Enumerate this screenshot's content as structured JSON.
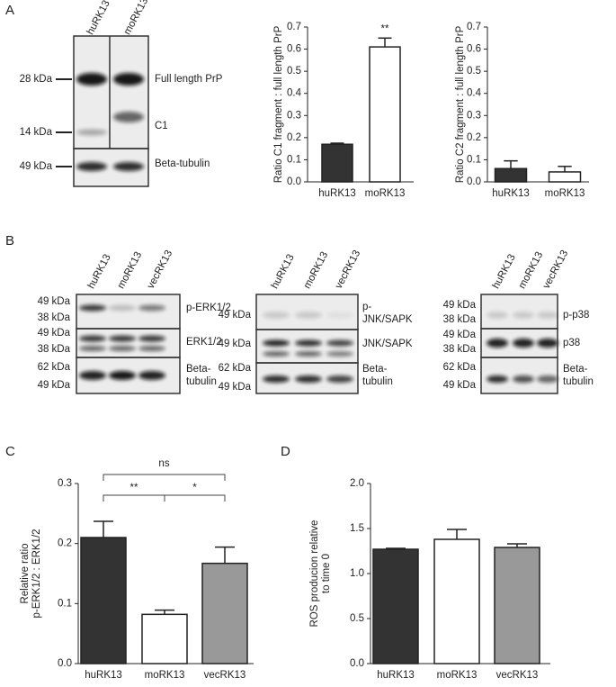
{
  "panels": [
    "A",
    "B",
    "C",
    "D"
  ],
  "blots": [
    {
      "lanes": [
        "huRK13",
        "moRK13"
      ],
      "markers": [
        "28 kDa",
        "14 kDa",
        "49 kDa"
      ],
      "bands": [
        [
          "Full length PrP"
        ],
        [
          "C1"
        ],
        [
          "Beta-tubulin"
        ]
      ]
    },
    {
      "lanes": [
        "huRK13",
        "moRK13",
        "vecRK13"
      ],
      "markers": [
        "49 kDa",
        "38 kDa",
        "49 kDa",
        "38 kDa",
        "62 kDa",
        "49 kDa"
      ],
      "bands": [
        [
          "p-ERK1/2"
        ],
        [
          "ERK1/2"
        ],
        [
          "Beta-",
          "tubulin"
        ]
      ]
    },
    {
      "lanes": [
        "huRK13",
        "moRK13",
        "vecRK13"
      ],
      "markers": [
        "49 kDa",
        "49 kDa",
        "62 kDa",
        "49 kDa"
      ],
      "bands": [
        [
          "p-",
          "JNK/SAPK"
        ],
        [
          "JNK/SAPK"
        ],
        [
          "Beta-",
          "tubulin"
        ]
      ]
    },
    {
      "lanes": [
        "huRK13",
        "moRK13",
        "vecRK13"
      ],
      "markers": [
        "49 kDa",
        "38 kDa",
        "49 kDa",
        "38 kDa",
        "62 kDa",
        "49 kDa"
      ],
      "bands": [
        [
          "p-p38"
        ],
        [
          "p38"
        ],
        [
          "Beta-",
          "tubulin"
        ]
      ]
    }
  ],
  "chart_data": [
    {
      "type": "bar",
      "ylabel": [
        "Ratio C1 fragment : full length PrP"
      ],
      "categories": [
        "huRK13",
        "moRK13"
      ],
      "values": [
        0.17,
        0.61
      ],
      "errors": [
        0.005,
        0.04
      ],
      "colors": [
        "#333333",
        "#ffffff"
      ],
      "ylim": [
        0,
        0.7
      ],
      "yticks": [
        {
          "value": 0,
          "label": "0.0"
        },
        0.1,
        0.2,
        0.3,
        0.4,
        0.5,
        0.6,
        0.7
      ],
      "annotations": [
        "**"
      ]
    },
    {
      "type": "bar",
      "ylabel": [
        "Ratio C2 fragment : full length PrP"
      ],
      "categories": [
        "huRK13",
        "moRK13"
      ],
      "values": [
        0.06,
        0.045
      ],
      "errors": [
        0.035,
        0.025
      ],
      "colors": [
        "#333333",
        "#ffffff"
      ],
      "ylim": [
        0,
        0.7
      ],
      "yticks": [
        {
          "value": 0,
          "label": "0.0"
        },
        0.1,
        0.2,
        0.3,
        0.4,
        0.5,
        0.6,
        0.7
      ]
    },
    {
      "type": "bar",
      "ylabel": [
        "Relative ratio",
        "p-ERK1/2 : ERK1/2"
      ],
      "categories": [
        "huRK13",
        "moRK13",
        "vecRK13"
      ],
      "values": [
        0.21,
        0.082,
        0.167
      ],
      "errors": [
        0.027,
        0.007,
        0.027
      ],
      "colors": [
        "#333333",
        "#ffffff",
        "#999999"
      ],
      "ylim": [
        0,
        0.3
      ],
      "yticks": [
        {
          "value": 0,
          "label": "0.0"
        },
        0.1,
        0.2,
        0.3
      ],
      "annotations": [
        "ns",
        "**",
        "*"
      ]
    },
    {
      "type": "bar",
      "ylabel": [
        "ROS producion relative",
        "to time 0"
      ],
      "categories": [
        "huRK13",
        "moRK13",
        "vecRK13"
      ],
      "values": [
        1.27,
        1.38,
        1.29
      ],
      "errors": [
        0.01,
        0.11,
        0.04
      ],
      "colors": [
        "#333333",
        "#ffffff",
        "#999999"
      ],
      "ylim": [
        0,
        2
      ],
      "yticks": [
        {
          "value": 0,
          "label": "0.0"
        },
        0.5,
        {
          "value": 1,
          "label": "1.0"
        },
        1.5,
        {
          "value": 2,
          "label": "2.0"
        }
      ]
    }
  ]
}
